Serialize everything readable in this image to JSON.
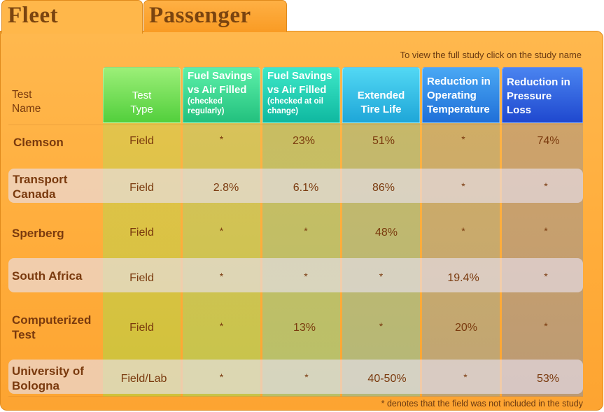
{
  "tabs": {
    "fleet": "Fleet",
    "passenger": "Passenger"
  },
  "notes": {
    "top": "To view the full study click on the study name",
    "bottom": "* denotes that the field was not included in the study"
  },
  "headers": {
    "test_name": [
      "Test",
      "Name"
    ],
    "test_type": [
      "Test",
      "Type"
    ],
    "fuel_regular": {
      "title": [
        "Fuel Savings",
        "vs Air Filled"
      ],
      "sub": [
        "(checked",
        "regularly)"
      ]
    },
    "fuel_oil": {
      "title": [
        "Fuel Savings",
        "vs Air Filled"
      ],
      "sub": [
        "(checked at oil",
        "change)"
      ]
    },
    "tire_life": [
      "Extended",
      "Tire Life"
    ],
    "operating_temp": [
      "Reduction in",
      "Operating",
      "Temperature"
    ],
    "pressure_loss": [
      "Reduction in",
      "Pressure",
      "Loss"
    ]
  },
  "colors": {
    "test_type": "#5fd34a",
    "fuel_regular": "#2cc98a",
    "fuel_oil": "#12c2a8",
    "tire_life": "#27b6de",
    "operating_temp": "#2a7fe0",
    "pressure_loss": "#2358d8",
    "panel": "#ffb040",
    "text": "#7a3a0e"
  },
  "rows": [
    {
      "name": [
        "Clemson"
      ],
      "type": "Field",
      "fuel_regular": "*",
      "fuel_oil": "23%",
      "tire_life": "51%",
      "operating_temp": "*",
      "pressure_loss": "74%"
    },
    {
      "name": [
        "Transport",
        "Canada"
      ],
      "type": "Field",
      "fuel_regular": "2.8%",
      "fuel_oil": "6.1%",
      "tire_life": "86%",
      "operating_temp": "*",
      "pressure_loss": "*"
    },
    {
      "name": [
        "Sperberg"
      ],
      "type": "Field",
      "fuel_regular": "*",
      "fuel_oil": "*",
      "tire_life": "48%",
      "operating_temp": "*",
      "pressure_loss": "*"
    },
    {
      "name": [
        "South Africa"
      ],
      "type": "Field",
      "fuel_regular": "*",
      "fuel_oil": "*",
      "tire_life": "*",
      "operating_temp": "19.4%",
      "pressure_loss": "*"
    },
    {
      "name": [
        "Computerized",
        "Test"
      ],
      "type": "Field",
      "fuel_regular": "*",
      "fuel_oil": "13%",
      "tire_life": "*",
      "operating_temp": "20%",
      "pressure_loss": "*"
    },
    {
      "name": [
        "University of",
        "Bologna"
      ],
      "type": "Field/Lab",
      "fuel_regular": "*",
      "fuel_oil": "*",
      "tire_life": "40-50%",
      "operating_temp": "*",
      "pressure_loss": "53%"
    }
  ]
}
